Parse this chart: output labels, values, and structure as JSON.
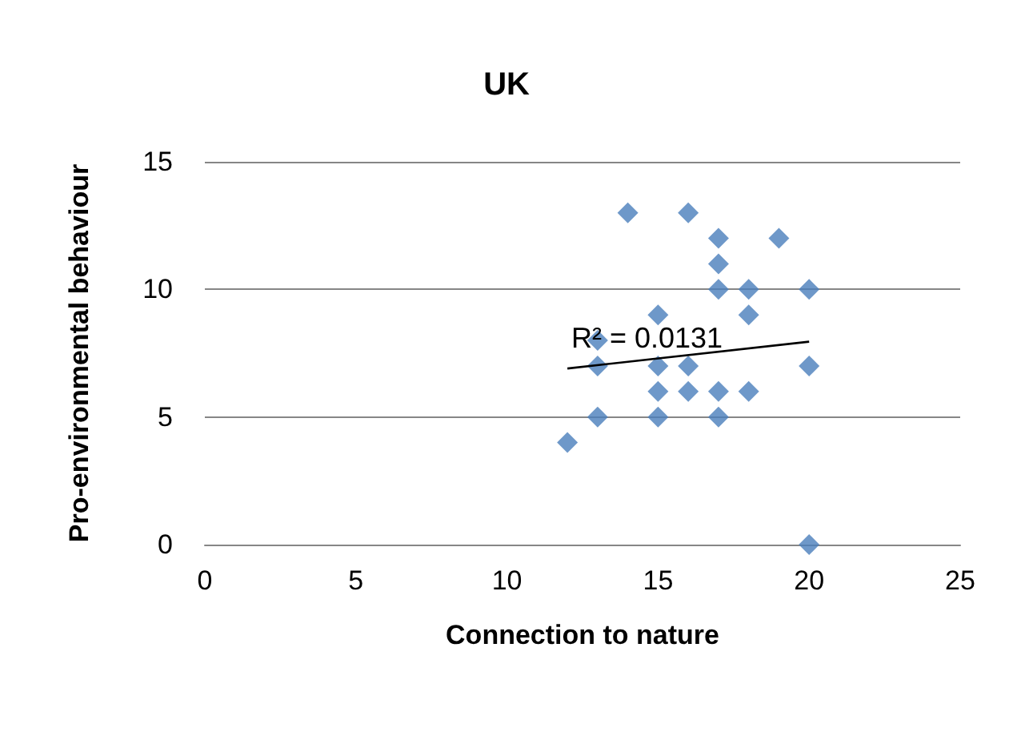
{
  "chart_data": {
    "type": "scatter",
    "title": "UK",
    "xlabel": "Connection to nature",
    "ylabel": "Pro-environmental behaviour",
    "annotations": [
      "R² = 0.0131"
    ],
    "series": [
      {
        "color": "#4a7ebb",
        "marker": "diamond",
        "x": [
          12,
          13,
          13,
          13,
          14,
          15,
          15,
          15,
          15,
          16,
          16,
          16,
          17,
          17,
          17,
          17,
          17,
          18,
          18,
          18,
          19,
          20,
          20,
          20
        ],
        "values": [
          4,
          5,
          7,
          8,
          13,
          9,
          7,
          6,
          5,
          13,
          7,
          6,
          12,
          11,
          10,
          6,
          5,
          10,
          9,
          6,
          12,
          10,
          7,
          0
        ]
      },
      {
        "type": "line",
        "color": "#000000",
        "marker": "none",
        "x": [
          12,
          20
        ],
        "values": [
          6.9,
          7.95
        ]
      }
    ],
    "xlim": [
      0,
      25
    ],
    "xticks": [
      0,
      5,
      10,
      15,
      20,
      25
    ],
    "ylim": [
      0,
      15
    ],
    "yticks": [
      0,
      5,
      10,
      15
    ],
    "grid": "y"
  }
}
